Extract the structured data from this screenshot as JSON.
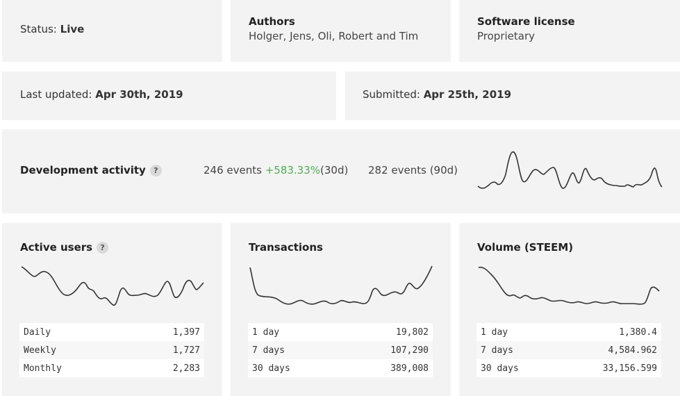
{
  "status": {
    "label": "Status:",
    "value": "Live"
  },
  "authors": {
    "title": "Authors",
    "value": "Holger, Jens, Oli, Robert and Tim"
  },
  "license": {
    "title": "Software license",
    "value": "Proprietary"
  },
  "last_updated": {
    "label": "Last updated:",
    "value": "Apr 30th, 2019"
  },
  "submitted": {
    "label": "Submitted:",
    "value": "Apr 25th, 2019"
  },
  "dev_activity": {
    "title": "Development activity",
    "help": "?",
    "events_30": "246 events",
    "change_30": "+583.33%",
    "period_30": "(30d)",
    "events_90": "282 events (90d)"
  },
  "active_users": {
    "title": "Active users",
    "help": "?",
    "rows": [
      {
        "label": "Daily",
        "value": "1,397"
      },
      {
        "label": "Weekly",
        "value": "1,727"
      },
      {
        "label": "Monthly",
        "value": "2,283"
      }
    ]
  },
  "transactions": {
    "title": "Transactions",
    "rows": [
      {
        "label": "1 day",
        "value": "19,802"
      },
      {
        "label": "7 days",
        "value": "107,290"
      },
      {
        "label": "30 days",
        "value": "389,008"
      }
    ]
  },
  "volume": {
    "title": "Volume (STEEM)",
    "rows": [
      {
        "label": "1 day",
        "value": "1,380.4"
      },
      {
        "label": "7 days",
        "value": "4,584.962"
      },
      {
        "label": "30 days",
        "value": "33,156.599"
      }
    ]
  },
  "colors": {
    "positive": "#4caf50",
    "card": "#f3f3f3",
    "line": "#333333"
  }
}
